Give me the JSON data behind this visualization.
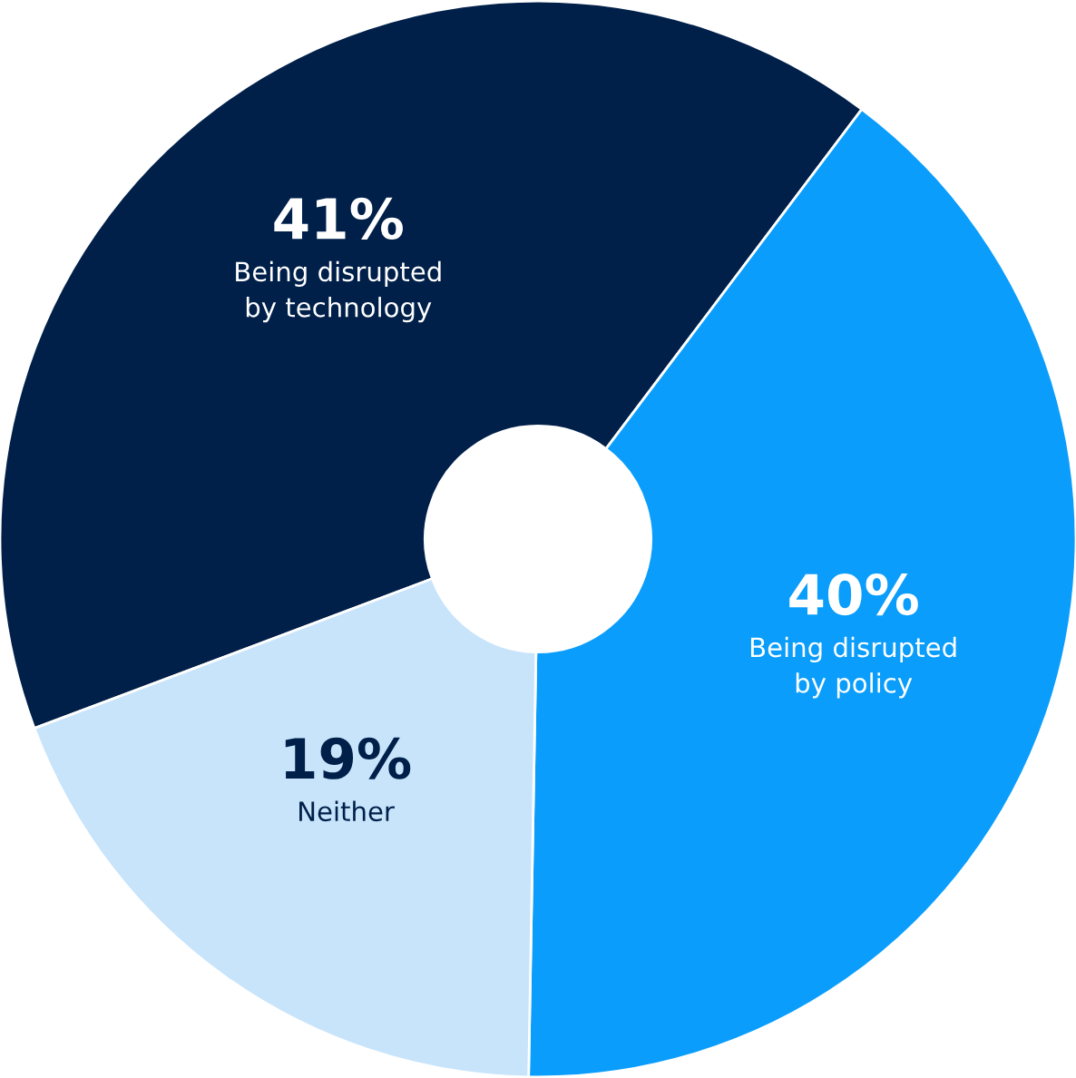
{
  "chart_data": {
    "type": "donut",
    "categories": [
      "Being disrupted\nby technology",
      "Being disrupted\nby policy",
      "Neither"
    ],
    "values": [
      41,
      40,
      19
    ],
    "colors": [
      "#00204a",
      "#0a9dfb",
      "#c8e4fb"
    ],
    "value_labels": [
      "41%",
      "40%",
      "19%"
    ]
  }
}
